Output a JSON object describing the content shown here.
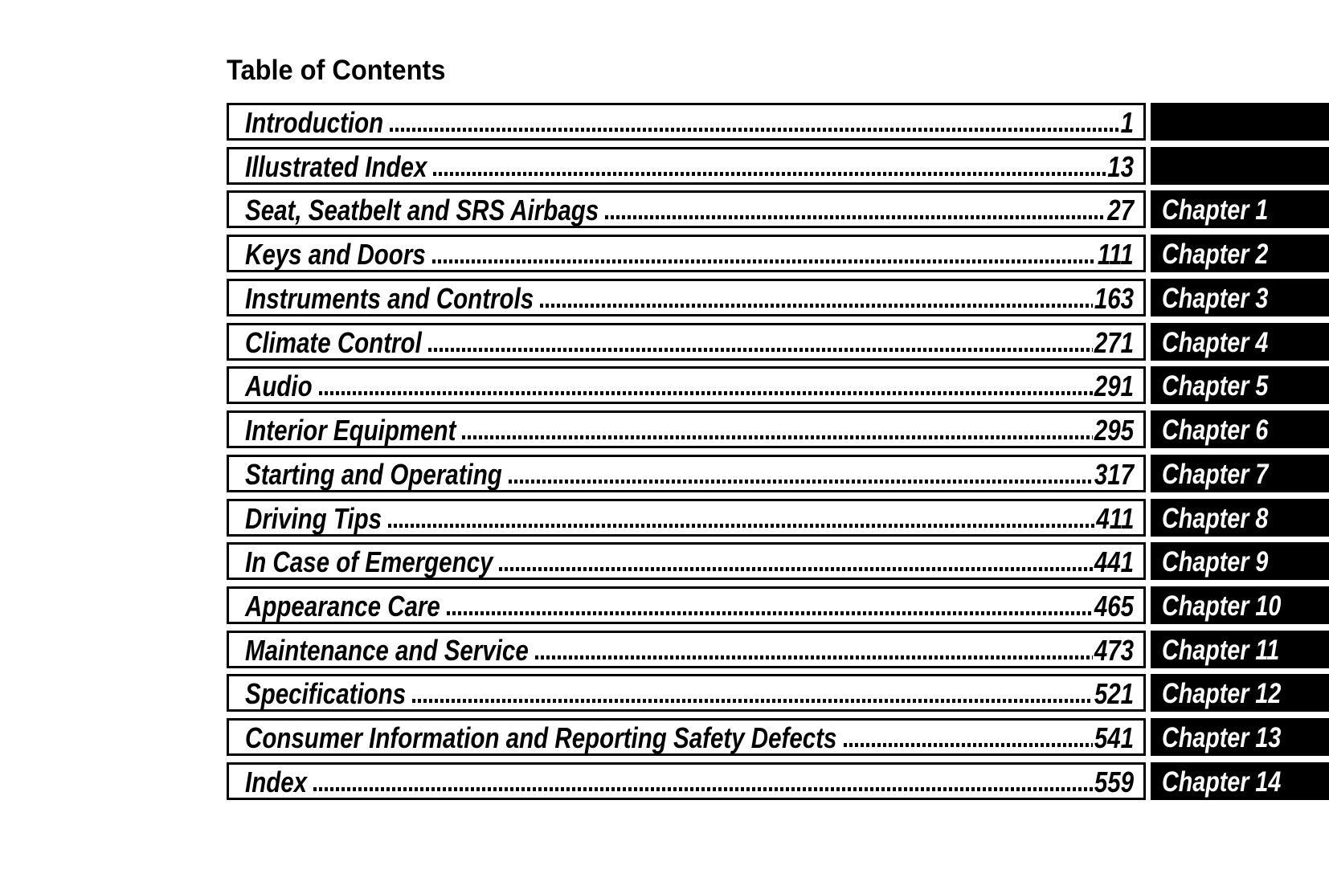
{
  "page_title": "Table of Contents",
  "colors": {
    "ink": "#000000",
    "paper": "#ffffff",
    "tab_bg": "#000000",
    "tab_text": "#ffffff"
  },
  "toc_rows": [
    {
      "title": "Introduction",
      "page": "1",
      "chapter": ""
    },
    {
      "title": "Illustrated Index",
      "page": "13",
      "chapter": ""
    },
    {
      "title": "Seat, Seatbelt and SRS Airbags",
      "page": "27",
      "chapter": "Chapter 1"
    },
    {
      "title": "Keys and Doors",
      "page": "111",
      "chapter": "Chapter 2"
    },
    {
      "title": "Instruments and Controls",
      "page": "163",
      "chapter": "Chapter 3"
    },
    {
      "title": "Climate Control",
      "page": "271",
      "chapter": "Chapter 4"
    },
    {
      "title": "Audio",
      "page": "291",
      "chapter": "Chapter 5"
    },
    {
      "title": "Interior Equipment",
      "page": "295",
      "chapter": "Chapter 6"
    },
    {
      "title": "Starting and Operating",
      "page": "317",
      "chapter": "Chapter 7"
    },
    {
      "title": "Driving Tips",
      "page": "411",
      "chapter": "Chapter 8"
    },
    {
      "title": "In Case of Emergency",
      "page": "441",
      "chapter": "Chapter 9"
    },
    {
      "title": "Appearance Care",
      "page": "465",
      "chapter": "Chapter 10"
    },
    {
      "title": "Maintenance and Service",
      "page": "473",
      "chapter": "Chapter 11"
    },
    {
      "title": "Specifications",
      "page": "521",
      "chapter": "Chapter 12"
    },
    {
      "title": "Consumer Information and Reporting Safety Defects",
      "page": "541",
      "chapter": "Chapter 13"
    },
    {
      "title": "Index",
      "page": "559",
      "chapter": "Chapter 14"
    }
  ]
}
